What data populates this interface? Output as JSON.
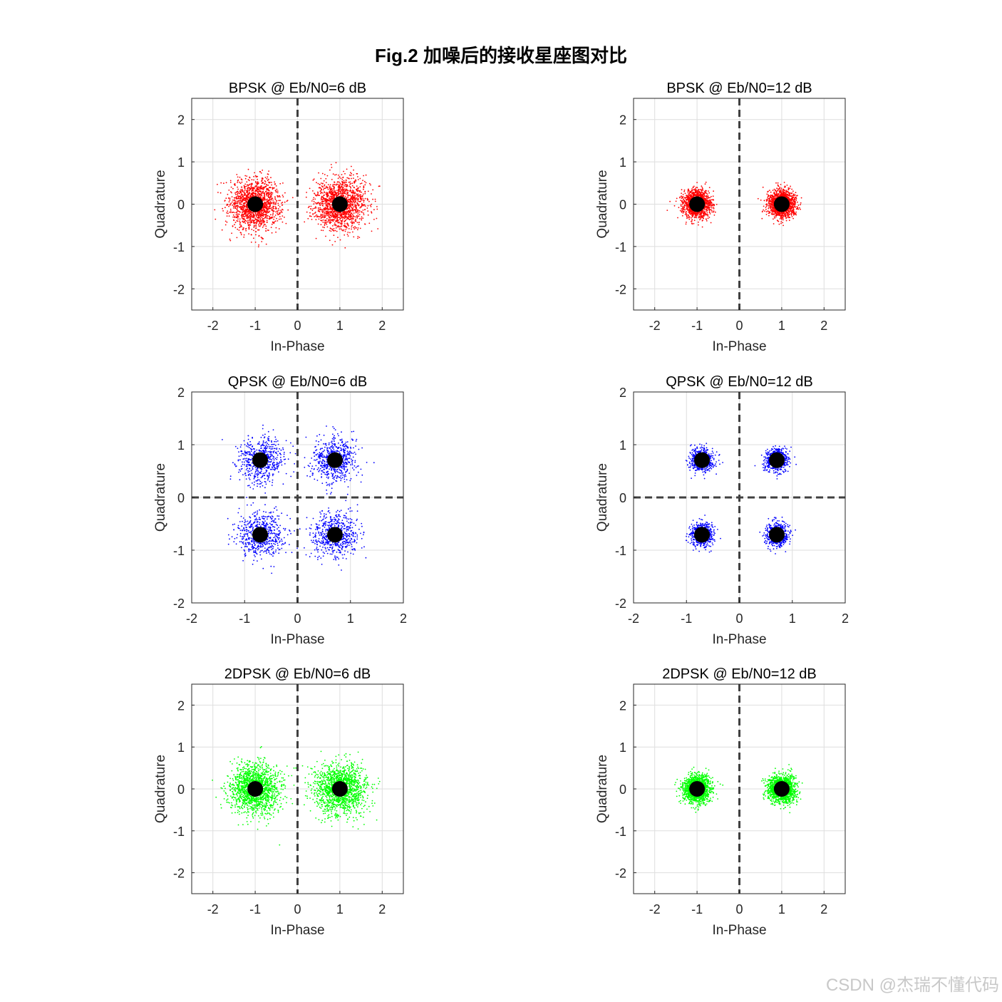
{
  "figure": {
    "title": "Fig.2 加噪后的接收星座图对比",
    "watermark": "CSDN @杰瑞不懂代码"
  },
  "chart_data": [
    {
      "type": "scatter",
      "title": "BPSK @ Eb/N0=6 dB",
      "xlabel": "In-Phase",
      "ylabel": "Quadrature",
      "xlim": [
        -2.5,
        2.5
      ],
      "ylim": [
        -2.5,
        2.5
      ],
      "xticks": [
        -2,
        -1,
        0,
        1,
        2
      ],
      "yticks": [
        -2,
        -1,
        0,
        1,
        2
      ],
      "xtick_labels": [
        "-2",
        "-1",
        "0",
        "1",
        "2"
      ],
      "ytick_labels": [
        "-2",
        "-1",
        "0",
        "1",
        "2"
      ],
      "grid": true,
      "color": "#ff0000",
      "noise_sigma": 0.3,
      "points_per_cluster": 1500,
      "constellation": [
        [
          -1,
          0
        ],
        [
          1,
          0
        ]
      ],
      "dashed_lines": [
        "x0"
      ]
    },
    {
      "type": "scatter",
      "title": "BPSK @ Eb/N0=12 dB",
      "xlabel": "In-Phase",
      "ylabel": "Quadrature",
      "xlim": [
        -2.5,
        2.5
      ],
      "ylim": [
        -2.5,
        2.5
      ],
      "xticks": [
        -2,
        -1,
        0,
        1,
        2
      ],
      "yticks": [
        -2,
        -1,
        0,
        1,
        2
      ],
      "xtick_labels": [
        "-2",
        "-1",
        "0",
        "1",
        "2"
      ],
      "ytick_labels": [
        "-2",
        "-1",
        "0",
        "1",
        "2"
      ],
      "grid": true,
      "color": "#ff0000",
      "noise_sigma": 0.16,
      "points_per_cluster": 1500,
      "constellation": [
        [
          -1,
          0
        ],
        [
          1,
          0
        ]
      ],
      "dashed_lines": [
        "x0"
      ]
    },
    {
      "type": "scatter",
      "title": "QPSK @ Eb/N0=6 dB",
      "xlabel": "In-Phase",
      "ylabel": "Quadrature",
      "xlim": [
        -2,
        2
      ],
      "ylim": [
        -2,
        2
      ],
      "xticks": [
        -2,
        -1,
        0,
        1,
        2
      ],
      "yticks": [
        -2,
        -1,
        0,
        1,
        2
      ],
      "xtick_labels": [
        "-2",
        "-1",
        "0",
        "1",
        "2"
      ],
      "ytick_labels": [
        "-2",
        "-1",
        "0",
        "1",
        "2"
      ],
      "grid": true,
      "color": "#0000ff",
      "noise_sigma": 0.22,
      "points_per_cluster": 600,
      "constellation": [
        [
          -0.707,
          0.707
        ],
        [
          0.707,
          0.707
        ],
        [
          -0.707,
          -0.707
        ],
        [
          0.707,
          -0.707
        ]
      ],
      "dashed_lines": [
        "x0",
        "y0"
      ]
    },
    {
      "type": "scatter",
      "title": "QPSK @ Eb/N0=12 dB",
      "xlabel": "In-Phase",
      "ylabel": "Quadrature",
      "xlim": [
        -2,
        2
      ],
      "ylim": [
        -2,
        2
      ],
      "xticks": [
        -2,
        -1,
        0,
        1,
        2
      ],
      "yticks": [
        -2,
        -1,
        0,
        1,
        2
      ],
      "xtick_labels": [
        "-2",
        "-1",
        "0",
        "1",
        "2"
      ],
      "ytick_labels": [
        "-2",
        "-1",
        "0",
        "1",
        "2"
      ],
      "grid": true,
      "color": "#0000ff",
      "noise_sigma": 0.11,
      "points_per_cluster": 600,
      "constellation": [
        [
          -0.707,
          0.707
        ],
        [
          0.707,
          0.707
        ],
        [
          -0.707,
          -0.707
        ],
        [
          0.707,
          -0.707
        ]
      ],
      "dashed_lines": [
        "x0",
        "y0"
      ]
    },
    {
      "type": "scatter",
      "title": "2DPSK @ Eb/N0=6 dB",
      "xlabel": "In-Phase",
      "ylabel": "Quadrature",
      "xlim": [
        -2.5,
        2.5
      ],
      "ylim": [
        -2.5,
        2.5
      ],
      "xticks": [
        -2,
        -1,
        0,
        1,
        2
      ],
      "yticks": [
        -2,
        -1,
        0,
        1,
        2
      ],
      "xtick_labels": [
        "-2",
        "-1",
        "0",
        "1",
        "2"
      ],
      "ytick_labels": [
        "-2",
        "-1",
        "0",
        "1",
        "2"
      ],
      "grid": true,
      "color": "#00ff00",
      "noise_sigma": 0.3,
      "points_per_cluster": 1500,
      "constellation": [
        [
          -1,
          0
        ],
        [
          1,
          0
        ]
      ],
      "dashed_lines": [
        "x0"
      ]
    },
    {
      "type": "scatter",
      "title": "2DPSK @ Eb/N0=12 dB",
      "xlabel": "In-Phase",
      "ylabel": "Quadrature",
      "xlim": [
        -2.5,
        2.5
      ],
      "ylim": [
        -2.5,
        2.5
      ],
      "xticks": [
        -2,
        -1,
        0,
        1,
        2
      ],
      "yticks": [
        -2,
        -1,
        0,
        1,
        2
      ],
      "xtick_labels": [
        "-2",
        "-1",
        "0",
        "1",
        "2"
      ],
      "ytick_labels": [
        "-2",
        "-1",
        "0",
        "1",
        "2"
      ],
      "grid": true,
      "color": "#00ff00",
      "noise_sigma": 0.16,
      "points_per_cluster": 1500,
      "constellation": [
        [
          -1,
          0
        ],
        [
          1,
          0
        ]
      ],
      "dashed_lines": [
        "x0"
      ]
    }
  ]
}
